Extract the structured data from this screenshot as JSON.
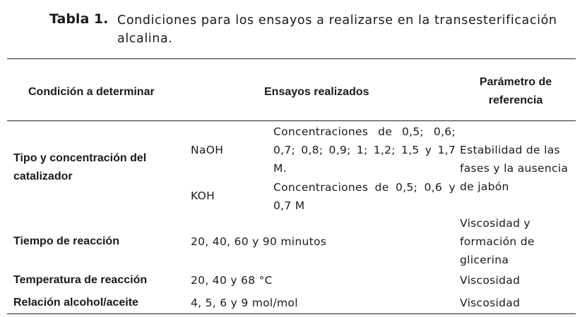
{
  "caption": {
    "label": "Tabla 1.",
    "text": "Condiciones para los ensayos a realizarse en la transesterificación alcalina."
  },
  "table": {
    "headers": {
      "condition": "Condición a determinar",
      "tests": "Ensayos realizados",
      "reference": "Parámetro de referencia"
    },
    "rows": [
      {
        "condition": "Tipo y concentración del catalizador",
        "sub": [
          {
            "catalyst": "NaOH",
            "detail": "Concentraciones de 0,5; 0,6; 0,7; 0,8; 0,9; 1; 1,2; 1,5 y 1,7 M."
          },
          {
            "catalyst": "KOH",
            "detail": "Concentraciones de 0,5; 0,6 y 0,7 M"
          }
        ],
        "reference": "Estabilidad de las fases y la ausencia de jabón"
      },
      {
        "condition": "Tiempo de reacción",
        "tests": "20, 40, 60 y 90 minutos",
        "reference": "Viscosidad y formación de glicerina"
      },
      {
        "condition": "Temperatura de reacción",
        "tests": "20, 40 y 68 °C",
        "reference": "Viscosidad"
      },
      {
        "condition": "Relación alcohol/aceite",
        "tests": "4, 5, 6 y 9 mol/mol",
        "reference": "Viscosidad"
      }
    ]
  }
}
